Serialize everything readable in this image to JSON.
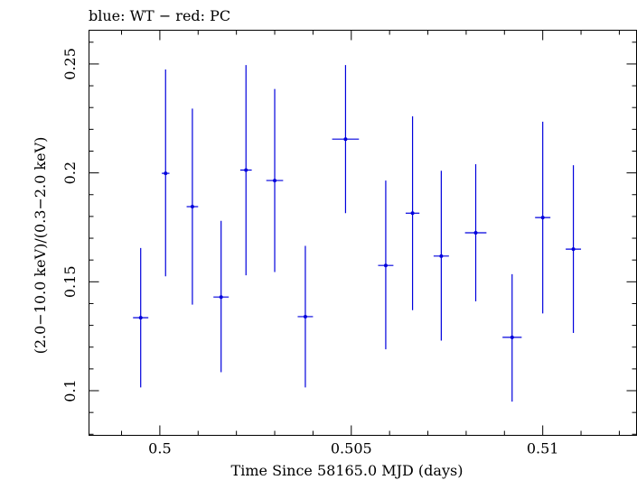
{
  "chart_data": {
    "type": "scatter",
    "title": "blue: WT − red: PC",
    "xlabel": "Time Since 58165.0 MJD (days)",
    "ylabel": "(2.0−10.0 keV)/(0.3−2.0 keV)",
    "xlim": [
      0.49815,
      0.51245
    ],
    "ylim": [
      0.0795,
      0.2655
    ],
    "x_ticks": [
      0.5,
      0.505,
      0.51
    ],
    "x_tick_labels": [
      "0.5",
      "0.505",
      "0.51"
    ],
    "y_ticks": [
      0.1,
      0.15,
      0.2,
      0.25
    ],
    "y_tick_labels": [
      "0.1",
      "0.15",
      "0.2",
      "0.25"
    ],
    "grid": false,
    "color": "#0000dd",
    "series": [
      {
        "points": [
          {
            "x": 0.4995,
            "xerr": 0.0002,
            "y": 0.1335,
            "ylo": 0.1015,
            "yhi": 0.1655
          },
          {
            "x": 0.50015,
            "xerr": 0.0001,
            "y": 0.1998,
            "ylo": 0.1525,
            "yhi": 0.2475
          },
          {
            "x": 0.50085,
            "xerr": 0.00015,
            "y": 0.1845,
            "ylo": 0.1395,
            "yhi": 0.2295
          },
          {
            "x": 0.5016,
            "xerr": 0.0002,
            "y": 0.143,
            "ylo": 0.1085,
            "yhi": 0.178
          },
          {
            "x": 0.50225,
            "xerr": 0.00015,
            "y": 0.2013,
            "ylo": 0.153,
            "yhi": 0.2495
          },
          {
            "x": 0.503,
            "xerr": 0.00022,
            "y": 0.1965,
            "ylo": 0.1545,
            "yhi": 0.2385
          },
          {
            "x": 0.5038,
            "xerr": 0.0002,
            "y": 0.134,
            "ylo": 0.1015,
            "yhi": 0.1665
          },
          {
            "x": 0.50485,
            "xerr": 0.00035,
            "y": 0.2155,
            "ylo": 0.1815,
            "yhi": 0.2495
          },
          {
            "x": 0.5059,
            "xerr": 0.0002,
            "y": 0.1575,
            "ylo": 0.119,
            "yhi": 0.1965
          },
          {
            "x": 0.5066,
            "xerr": 0.00018,
            "y": 0.1815,
            "ylo": 0.137,
            "yhi": 0.226
          },
          {
            "x": 0.50735,
            "xerr": 0.0002,
            "y": 0.1618,
            "ylo": 0.123,
            "yhi": 0.201
          },
          {
            "x": 0.50825,
            "xerr": 0.00028,
            "y": 0.1725,
            "ylo": 0.141,
            "yhi": 0.204
          },
          {
            "x": 0.5092,
            "xerr": 0.00025,
            "y": 0.1245,
            "ylo": 0.095,
            "yhi": 0.1535
          },
          {
            "x": 0.51,
            "xerr": 0.0002,
            "y": 0.1795,
            "ylo": 0.1355,
            "yhi": 0.2235
          },
          {
            "x": 0.5108,
            "xerr": 0.0002,
            "y": 0.165,
            "ylo": 0.1265,
            "yhi": 0.2035
          }
        ]
      }
    ]
  }
}
